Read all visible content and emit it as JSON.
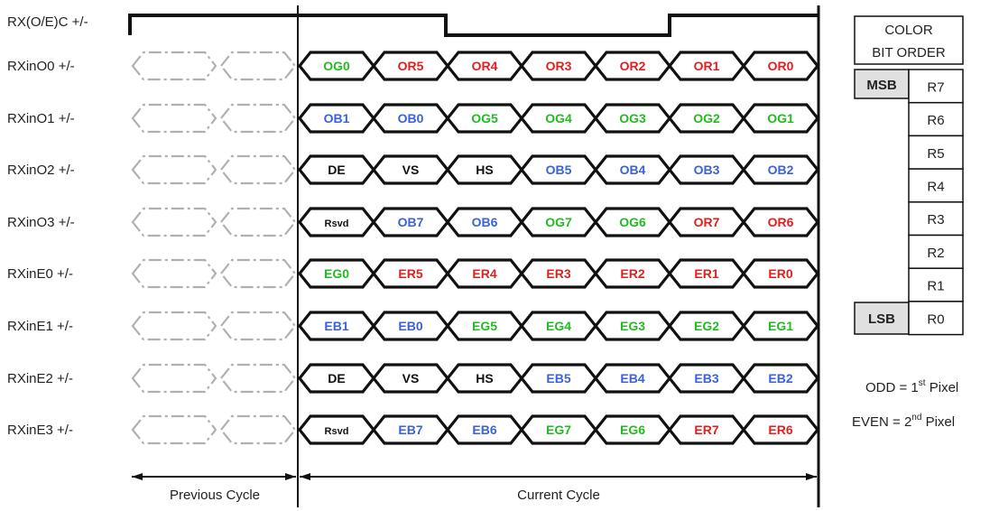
{
  "clock": {
    "label": "RX(O/E)C +/-"
  },
  "colors": {
    "green": "#22bb22",
    "red": "#e02020",
    "blue": "#3b62d6",
    "black": "#111111",
    "prev_outline": "#b0b0b0",
    "table_fill": "#e0e0e0"
  },
  "lanes": [
    {
      "label": "RXinO0 +/-",
      "cells": [
        {
          "text": "OG0",
          "color": "green"
        },
        {
          "text": "OR5",
          "color": "red"
        },
        {
          "text": "OR4",
          "color": "red"
        },
        {
          "text": "OR3",
          "color": "red"
        },
        {
          "text": "OR2",
          "color": "red"
        },
        {
          "text": "OR1",
          "color": "red"
        },
        {
          "text": "OR0",
          "color": "red"
        }
      ]
    },
    {
      "label": "RXinO1 +/-",
      "cells": [
        {
          "text": "OB1",
          "color": "blue"
        },
        {
          "text": "OB0",
          "color": "blue"
        },
        {
          "text": "OG5",
          "color": "green"
        },
        {
          "text": "OG4",
          "color": "green"
        },
        {
          "text": "OG3",
          "color": "green"
        },
        {
          "text": "OG2",
          "color": "green"
        },
        {
          "text": "OG1",
          "color": "green"
        }
      ]
    },
    {
      "label": "RXinO2 +/-",
      "cells": [
        {
          "text": "DE",
          "color": "black"
        },
        {
          "text": "VS",
          "color": "black"
        },
        {
          "text": "HS",
          "color": "black"
        },
        {
          "text": "OB5",
          "color": "blue"
        },
        {
          "text": "OB4",
          "color": "blue"
        },
        {
          "text": "OB3",
          "color": "blue"
        },
        {
          "text": "OB2",
          "color": "blue"
        }
      ]
    },
    {
      "label": "RXinO3 +/-",
      "cells": [
        {
          "text": "Rsvd",
          "color": "black"
        },
        {
          "text": "OB7",
          "color": "blue"
        },
        {
          "text": "OB6",
          "color": "blue"
        },
        {
          "text": "OG7",
          "color": "green"
        },
        {
          "text": "OG6",
          "color": "green"
        },
        {
          "text": "OR7",
          "color": "red"
        },
        {
          "text": "OR6",
          "color": "red"
        }
      ]
    },
    {
      "label": "RXinE0 +/-",
      "cells": [
        {
          "text": "EG0",
          "color": "green"
        },
        {
          "text": "ER5",
          "color": "red"
        },
        {
          "text": "ER4",
          "color": "red"
        },
        {
          "text": "ER3",
          "color": "red"
        },
        {
          "text": "ER2",
          "color": "red"
        },
        {
          "text": "ER1",
          "color": "red"
        },
        {
          "text": "ER0",
          "color": "red"
        }
      ]
    },
    {
      "label": "RXinE1 +/-",
      "cells": [
        {
          "text": "EB1",
          "color": "blue"
        },
        {
          "text": "EB0",
          "color": "blue"
        },
        {
          "text": "EG5",
          "color": "green"
        },
        {
          "text": "EG4",
          "color": "green"
        },
        {
          "text": "EG3",
          "color": "green"
        },
        {
          "text": "EG2",
          "color": "green"
        },
        {
          "text": "EG1",
          "color": "green"
        }
      ]
    },
    {
      "label": "RXinE2 +/-",
      "cells": [
        {
          "text": "DE",
          "color": "black"
        },
        {
          "text": "VS",
          "color": "black"
        },
        {
          "text": "HS",
          "color": "black"
        },
        {
          "text": "EB5",
          "color": "blue"
        },
        {
          "text": "EB4",
          "color": "blue"
        },
        {
          "text": "EB3",
          "color": "blue"
        },
        {
          "text": "EB2",
          "color": "blue"
        }
      ]
    },
    {
      "label": "RXinE3 +/-",
      "cells": [
        {
          "text": "Rsvd",
          "color": "black"
        },
        {
          "text": "EB7",
          "color": "blue"
        },
        {
          "text": "EB6",
          "color": "blue"
        },
        {
          "text": "EG7",
          "color": "green"
        },
        {
          "text": "EG6",
          "color": "green"
        },
        {
          "text": "ER7",
          "color": "red"
        },
        {
          "text": "ER6",
          "color": "red"
        }
      ]
    }
  ],
  "cycles": {
    "previous": "Previous Cycle",
    "current": "Current Cycle"
  },
  "bit_table": {
    "header_line1": "COLOR",
    "header_line2": "BIT ORDER",
    "msb": "MSB",
    "lsb": "LSB",
    "bits": [
      "R7",
      "R6",
      "R5",
      "R4",
      "R3",
      "R2",
      "R1",
      "R0"
    ]
  },
  "notes": {
    "odd_prefix": "ODD = 1",
    "odd_sup": "st",
    "odd_suffix": " Pixel",
    "even_prefix": "EVEN = 2",
    "even_sup": "nd",
    "even_suffix": " Pixel"
  }
}
